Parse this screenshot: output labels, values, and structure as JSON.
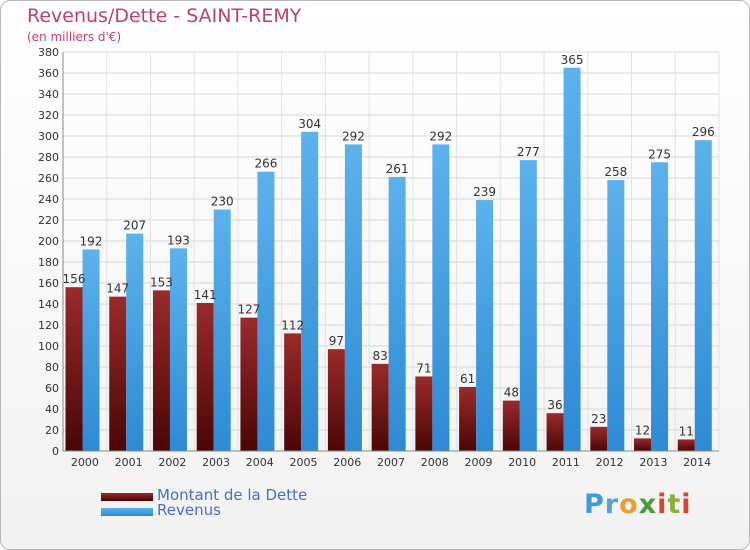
{
  "title": "Revenus/Dette - SAINT-REMY",
  "subtitle": "(en milliers d'€)",
  "logo": "Proxiti",
  "chart_data": {
    "type": "bar",
    "categories": [
      "2000",
      "2001",
      "2002",
      "2003",
      "2004",
      "2005",
      "2006",
      "2007",
      "2008",
      "2009",
      "2010",
      "2011",
      "2012",
      "2013",
      "2014"
    ],
    "series": [
      {
        "name": "Montant de la Dette",
        "color": "#7a1a1a",
        "values": [
          156,
          147,
          153,
          141,
          127,
          112,
          97,
          83,
          71,
          61,
          48,
          36,
          23,
          12,
          11
        ]
      },
      {
        "name": "Revenus",
        "color": "#3a9ee0",
        "values": [
          192,
          207,
          193,
          230,
          266,
          304,
          292,
          261,
          292,
          239,
          277,
          365,
          258,
          275,
          296
        ]
      }
    ],
    "ylim": [
      0,
      380
    ],
    "ytick_step": 20,
    "grid": true,
    "legend_position": "bottom-left"
  }
}
